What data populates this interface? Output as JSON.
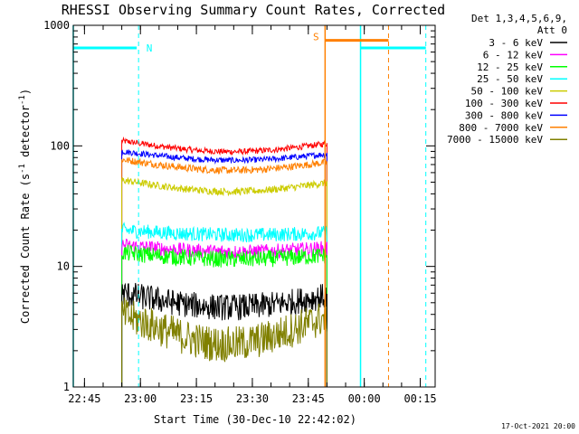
{
  "chart_data": {
    "type": "line",
    "title": "RHESSI Observing Summary Count Rates, Corrected",
    "xlabel": "Start Time (30-Dec-10 22:42:02)",
    "ylabel_main": "Corrected Count Rate (s",
    "ylabel_sup1": "-1",
    "ylabel_mid": " detector",
    "ylabel_sup2": "-1",
    "ylabel_end": ")",
    "ylim": [
      1,
      1000
    ],
    "yscale": "log",
    "yticks": [
      {
        "value": 1,
        "label": "1"
      },
      {
        "value": 10,
        "label": "10"
      },
      {
        "value": 100,
        "label": "100"
      },
      {
        "value": 1000,
        "label": "1000"
      }
    ],
    "x_unit": "minutes after 22:42:02",
    "xlim": [
      0,
      97
    ],
    "xticks": [
      {
        "value": 3,
        "label": "22:45"
      },
      {
        "value": 18,
        "label": "23:00"
      },
      {
        "value": 33,
        "label": "23:15"
      },
      {
        "value": 48,
        "label": "23:30"
      },
      {
        "value": 63,
        "label": "23:45"
      },
      {
        "value": 78,
        "label": "00:00"
      },
      {
        "value": 93,
        "label": "00:15"
      }
    ],
    "legend": {
      "placement": "right",
      "header": [
        "Det 1,3,4,5,6,9,",
        "Att 0"
      ],
      "entries": [
        {
          "label": "3 - 6 keV",
          "color": "#000000"
        },
        {
          "label": "6 - 12 keV",
          "color": "#ff00ff"
        },
        {
          "label": "12 - 25 keV",
          "color": "#00ff00"
        },
        {
          "label": "25 - 50 keV",
          "color": "#00ffff"
        },
        {
          "label": "50 - 100 keV",
          "color": "#cccc00"
        },
        {
          "label": "100 - 300 keV",
          "color": "#ff0000"
        },
        {
          "label": "300 - 800 keV",
          "color": "#0000ff"
        },
        {
          "label": "800 - 7000 keV",
          "color": "#ff8000"
        },
        {
          "label": "7000 - 15000 keV",
          "color": "#808000"
        }
      ]
    },
    "data_window": [
      13,
      68
    ],
    "series": [
      {
        "color": "#ff0000",
        "level": 110,
        "noise": 0.05,
        "curve": 0.85
      },
      {
        "color": "#0000ff",
        "level": 90,
        "noise": 0.05,
        "curve": 0.88
      },
      {
        "color": "#ff8000",
        "level": 77,
        "noise": 0.06,
        "curve": 0.85
      },
      {
        "color": "#cccc00",
        "level": 52,
        "noise": 0.06,
        "curve": 0.84
      },
      {
        "color": "#00ffff",
        "level": 20,
        "noise": 0.12,
        "curve": 0.95
      },
      {
        "color": "#ff00ff",
        "level": 15,
        "noise": 0.12,
        "curve": 0.92
      },
      {
        "color": "#00ff00",
        "level": 13,
        "noise": 0.14,
        "curve": 0.92
      },
      {
        "color": "#000000",
        "level": 6,
        "noise": 0.22,
        "curve": 0.8
      },
      {
        "color": "#808000",
        "level": 4,
        "noise": 0.3,
        "curve": 0.6
      }
    ],
    "flags": [
      {
        "label": "N",
        "color": "#00ffff",
        "value": 650,
        "segments": [
          [
            0,
            17
          ]
        ],
        "dashed_x": [
          17.5,
          94.5
        ],
        "solid_x": [
          0,
          77
        ]
      },
      {
        "label": "S",
        "color": "#ff8000",
        "value": 750,
        "segments": [
          [
            67.5,
            84.5
          ]
        ],
        "dashed_x": [
          84.5
        ],
        "solid_x": [
          67.5
        ]
      },
      {
        "label": "",
        "color": "#00ffff",
        "value": 650,
        "segments": [
          [
            77,
            94.5
          ]
        ],
        "dashed_x": [],
        "solid_x": []
      }
    ],
    "grid": false
  },
  "footer": {
    "timestamp": "17-Oct-2021 20:00"
  }
}
